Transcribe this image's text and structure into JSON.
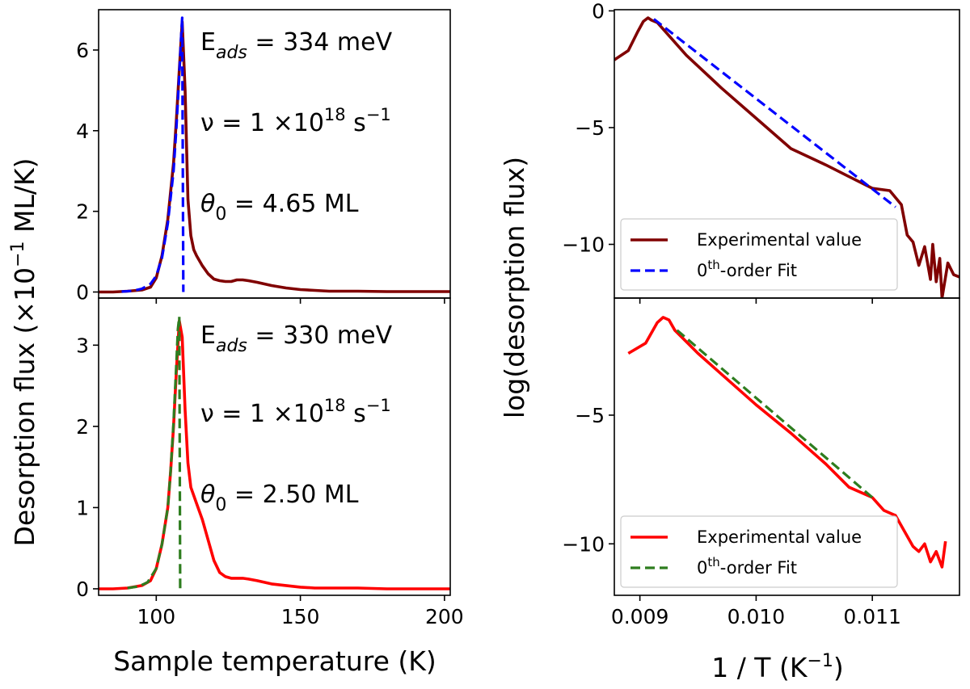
{
  "labels": {
    "left_ylabel_pre": "Desorption flux (",
    "left_ylabel_times": "×10",
    "left_ylabel_exp": "−1",
    "left_ylabel_post": " ML/K)",
    "left_xlabel": "Sample temperature (K)",
    "right_ylabel": "log(desorption flux)",
    "right_xlabel_pre": "1 / T (K",
    "right_xlabel_exp": "−1",
    "right_xlabel_post": ")"
  },
  "colors": {
    "dark_red": "#800000",
    "red": "#ff0000",
    "blue": "#0000ff",
    "dark_green": "#2e7d1f"
  },
  "chart_data": [
    {
      "id": "top_left",
      "type": "line",
      "xlim": [
        80,
        202
      ],
      "ylim": [
        -0.15,
        7.0
      ],
      "xticks": [
        100,
        150,
        200
      ],
      "yticks": [
        0,
        2,
        4,
        6
      ],
      "show_xticklabels": false,
      "annotations": {
        "eads": {
          "base": "E",
          "sub": "ads",
          "rest": " = 334 meV"
        },
        "nu": {
          "base": "ν = 1 ×10",
          "sup": "18",
          "rest": " s",
          "sup2": "−1"
        },
        "theta": {
          "base": "θ",
          "sub": "0",
          "rest": " =  4.65 ML"
        }
      },
      "series": [
        {
          "kind": "exp",
          "color": "#800000",
          "dash": false,
          "x": [
            80,
            85,
            90,
            95,
            98,
            100,
            102,
            104,
            106,
            107,
            108,
            109,
            110,
            111,
            112,
            113,
            114,
            116,
            118,
            120,
            122,
            124,
            126,
            128,
            130,
            132,
            135,
            140,
            145,
            150,
            155,
            160,
            170,
            180,
            190,
            202
          ],
          "y": [
            0,
            0,
            0.02,
            0.05,
            0.12,
            0.35,
            0.9,
            1.8,
            3.2,
            4.3,
            5.5,
            6.7,
            5.0,
            2.3,
            1.4,
            1.05,
            0.9,
            0.65,
            0.45,
            0.32,
            0.28,
            0.26,
            0.26,
            0.3,
            0.3,
            0.28,
            0.24,
            0.16,
            0.1,
            0.06,
            0.04,
            0.02,
            0.02,
            0.01,
            0.01,
            0.01
          ]
        },
        {
          "kind": "fit",
          "color": "#0000ff",
          "dash": true,
          "x": [
            88,
            92,
            95,
            98,
            100,
            102,
            104,
            106,
            107,
            108,
            108.6,
            109,
            109.4
          ],
          "y": [
            0.01,
            0.03,
            0.08,
            0.2,
            0.4,
            0.85,
            1.7,
            3.0,
            4.1,
            5.4,
            6.3,
            6.8,
            0
          ]
        }
      ]
    },
    {
      "id": "bottom_left",
      "type": "line",
      "xlim": [
        80,
        202
      ],
      "ylim": [
        -0.08,
        3.58
      ],
      "xticks": [
        100,
        150,
        200
      ],
      "yticks": [
        0,
        1,
        2,
        3
      ],
      "show_xticklabels": true,
      "annotations": {
        "eads": {
          "base": "E",
          "sub": "ads",
          "rest": " = 330 meV"
        },
        "nu": {
          "base": "ν = 1 ×10",
          "sup": "18",
          "rest": " s",
          "sup2": "−1"
        },
        "theta": {
          "base": "θ",
          "sub": "0",
          "rest": " =  2.50 ML"
        }
      },
      "series": [
        {
          "kind": "exp",
          "color": "#ff0000",
          "dash": false,
          "x": [
            80,
            85,
            90,
            95,
            98,
            100,
            102,
            104,
            105,
            106,
            107,
            108,
            109,
            110,
            111,
            112,
            114,
            116,
            118,
            120,
            122,
            124,
            126,
            128,
            130,
            132,
            135,
            140,
            145,
            150,
            155,
            160,
            170,
            180,
            190,
            202
          ],
          "y": [
            0,
            0,
            0.01,
            0.04,
            0.1,
            0.25,
            0.55,
            1.0,
            1.45,
            2.0,
            2.7,
            3.3,
            3.1,
            2.2,
            1.55,
            1.25,
            1.05,
            0.85,
            0.6,
            0.35,
            0.2,
            0.15,
            0.13,
            0.13,
            0.13,
            0.12,
            0.1,
            0.06,
            0.04,
            0.02,
            0.01,
            0.01,
            0.01,
            0.0,
            0.0,
            0.0
          ]
        },
        {
          "kind": "fit",
          "color": "#2e7d1f",
          "dash": true,
          "x": [
            90,
            94,
            97,
            100,
            102,
            104,
            105,
            106,
            107,
            107.5,
            108,
            108.3
          ],
          "y": [
            0.01,
            0.03,
            0.08,
            0.25,
            0.55,
            1.0,
            1.45,
            2.05,
            2.8,
            3.2,
            3.35,
            0
          ]
        }
      ]
    },
    {
      "id": "top_right",
      "type": "line",
      "xlim": [
        0.00878,
        0.01175
      ],
      "ylim": [
        -12.3,
        0.05
      ],
      "xticks": [
        0.009,
        0.01,
        0.011
      ],
      "yticks": [
        0,
        -5,
        -10
      ],
      "show_xticklabels": false,
      "legend": {
        "position": "lower-left",
        "exp_label": "Experimental value",
        "fit_base": "0",
        "fit_sup": "th",
        "fit_rest": "-order Fit"
      },
      "series": [
        {
          "kind": "exp",
          "color": "#800000",
          "dash": false,
          "x": [
            0.00878,
            0.0089,
            0.00898,
            0.00903,
            0.00907,
            0.0091,
            0.00915,
            0.0094,
            0.0097,
            0.01,
            0.0103,
            0.0106,
            0.0108,
            0.011,
            0.01115,
            0.01125,
            0.0113,
            0.01135,
            0.0114,
            0.01145,
            0.0115,
            0.01152,
            0.01155,
            0.01158,
            0.0116,
            0.01165,
            0.0117,
            0.01175
          ],
          "y": [
            -2.1,
            -1.7,
            -0.9,
            -0.45,
            -0.3,
            -0.4,
            -0.5,
            -1.9,
            -3.3,
            -4.6,
            -5.9,
            -6.6,
            -7.1,
            -7.6,
            -7.7,
            -8.3,
            -9.6,
            -9.9,
            -10.9,
            -10.1,
            -11.5,
            -10.0,
            -11.6,
            -10.6,
            -12.3,
            -10.8,
            -11.3,
            -11.4
          ]
        },
        {
          "kind": "fit",
          "color": "#0000ff",
          "dash": true,
          "x": [
            0.00912,
            0.0112
          ],
          "y": [
            -0.35,
            -8.4
          ]
        }
      ]
    },
    {
      "id": "bottom_right",
      "type": "line",
      "xlim": [
        0.00878,
        0.01175
      ],
      "ylim": [
        -12.0,
        -0.45
      ],
      "xticks": [
        0.009,
        0.01,
        0.011
      ],
      "yticks": [
        -5,
        -10
      ],
      "show_xticklabels": true,
      "legend": {
        "position": "lower-left",
        "exp_label": "Experimental value",
        "fit_base": "0",
        "fit_sup": "th",
        "fit_rest": "-order Fit"
      },
      "series": [
        {
          "kind": "exp",
          "color": "#ff0000",
          "dash": false,
          "x": [
            0.0089,
            0.00905,
            0.00915,
            0.0092,
            0.00925,
            0.0093,
            0.0095,
            0.0098,
            0.01,
            0.0103,
            0.0106,
            0.0108,
            0.011,
            0.0111,
            0.0112,
            0.0113,
            0.01135,
            0.0114,
            0.01145,
            0.0115,
            0.01155,
            0.0116,
            0.01163
          ],
          "y": [
            -2.6,
            -2.2,
            -1.4,
            -1.2,
            -1.3,
            -1.7,
            -2.6,
            -3.8,
            -4.6,
            -5.7,
            -6.9,
            -7.8,
            -8.2,
            -8.7,
            -8.9,
            -9.7,
            -10.1,
            -10.3,
            -10.0,
            -10.7,
            -10.3,
            -10.9,
            -9.9
          ]
        },
        {
          "kind": "fit",
          "color": "#2e7d1f",
          "dash": true,
          "x": [
            0.00932,
            0.011
          ],
          "y": [
            -1.7,
            -8.2
          ]
        }
      ]
    }
  ]
}
